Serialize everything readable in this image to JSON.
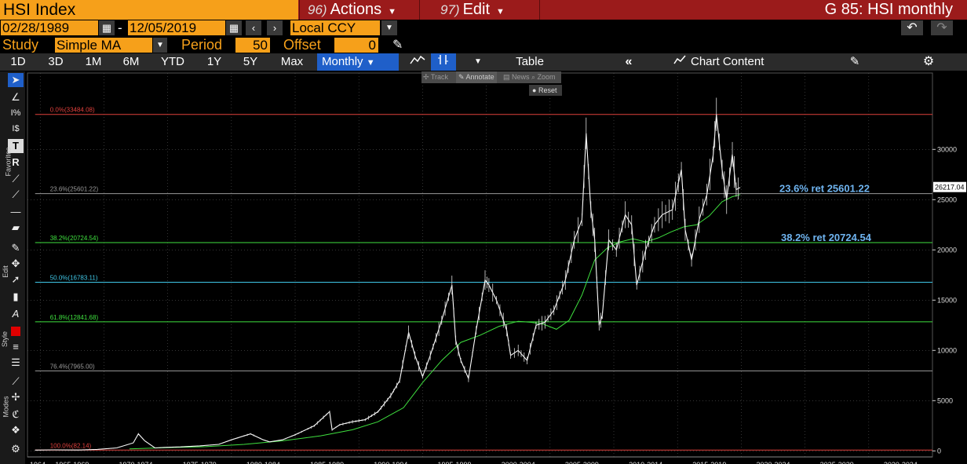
{
  "header": {
    "ticker": "HSI Index",
    "actions_num": "96)",
    "actions_label": "Actions",
    "edit_num": "97)",
    "edit_label": "Edit",
    "page_title": "G 85: HSI monthly"
  },
  "dates": {
    "start": "02/28/1989",
    "sep": "-",
    "end": "12/05/2019",
    "currency": "Local CCY"
  },
  "study": {
    "label": "Study",
    "value": "Simple MA",
    "period_label": "Period",
    "period_value": "50",
    "offset_label": "Offset",
    "offset_value": "0"
  },
  "toolbar": {
    "ranges": [
      "1D",
      "3D",
      "1M",
      "6M",
      "YTD",
      "1Y",
      "5Y",
      "Max"
    ],
    "frequency": "Monthly",
    "table": "Table",
    "chart_content": "Chart Content"
  },
  "annotate_bar": {
    "track": "Track",
    "annotate": "Annotate",
    "news": "News",
    "zoom": "Zoom",
    "reset": "Reset"
  },
  "side_labels": {
    "favorites": "Favorites",
    "edit": "Edit",
    "style": "Style",
    "modes": "Modes"
  },
  "colors": {
    "orange": "#f6a01a",
    "header_red": "#9b1b1b",
    "active_blue": "#1f5fc9",
    "fib_red": "#e0403c",
    "fib_grey": "#9a9a9a",
    "fib_green": "#3fe03f",
    "fib_cyan": "#40c8e8",
    "ma_line": "#3fe03f",
    "price_line": "#ffffff",
    "annotation_blue": "#6fb4f0"
  },
  "chart_data": {
    "type": "line",
    "title": "",
    "ylim": [
      -600,
      37600
    ],
    "y_ticks": [
      0,
      5000,
      10000,
      15000,
      20000,
      25000,
      30000
    ],
    "x_range": [
      "1964",
      "2035"
    ],
    "x_tick_labels": [
      "1964",
      "1965-1969",
      "1970-1974",
      "1975-1979",
      "1980-1984",
      "1985-1989",
      "1990-1994",
      "1995-1999",
      "2000-2004",
      "2005-2009",
      "2010-2014",
      "2015-2019",
      "2020-2024",
      "2025-2029",
      "2030-2034"
    ],
    "last_price_label": "26217.04",
    "fib_levels": [
      {
        "label": "0.0%(33484.08)",
        "value": 33484.08,
        "color": "#e0403c"
      },
      {
        "label": "23.6%(25601.22)",
        "value": 25601.22,
        "color": "#9a9a9a"
      },
      {
        "label": "38.2%(20724.54)",
        "value": 20724.54,
        "color": "#3fe03f"
      },
      {
        "label": "50.0%(16783.11)",
        "value": 16783.11,
        "color": "#40c8e8"
      },
      {
        "label": "61.8%(12841.68)",
        "value": 12841.68,
        "color": "#3fe03f"
      },
      {
        "label": "76.4%(7965.00)",
        "value": 7965.0,
        "color": "#9a9a9a"
      },
      {
        "label": "100.0%(82.14)",
        "value": 82.14,
        "color": "#e0403c"
      }
    ],
    "annotations": [
      {
        "text": "23.6% ret 25601.22",
        "value": 25601.22
      },
      {
        "text": "38.2% ret 20724.54",
        "value": 20724.54
      }
    ],
    "series": [
      {
        "name": "HSI",
        "x": [
          1964.6,
          1966,
          1968,
          1969.5,
          1971,
          1972.3,
          1972.7,
          1973.2,
          1974,
          1974.8,
          1976,
          1977.5,
          1979,
          1980,
          1981.5,
          1982.5,
          1983,
          1984,
          1985,
          1986.5,
          1987.7,
          1987.9,
          1988.5,
          1989.5,
          1990.5,
          1991.5,
          1992.5,
          1993.2,
          1993.9,
          1994.4,
          1995,
          1995.6,
          1996.5,
          1997.3,
          1997.6,
          1998,
          1998.6,
          1999.2,
          1999.9,
          2000.2,
          2000.8,
          2001.6,
          2001.9,
          2002.5,
          2003.2,
          2003.9,
          2004.6,
          2005.3,
          2006.2,
          2006.9,
          2007.5,
          2007.83,
          2008.2,
          2008.5,
          2008.85,
          2009.1,
          2009.6,
          2010.2,
          2010.9,
          2011.4,
          2011.8,
          2012.5,
          2013.2,
          2013.8,
          2014.6,
          2015.3,
          2015.6,
          2016.1,
          2016.7,
          2017.3,
          2017.8,
          2018.05,
          2018.5,
          2018.85,
          2019.3,
          2019.6,
          2019.92
        ],
        "y": [
          82,
          100,
          90,
          150,
          300,
          800,
          1700,
          1000,
          300,
          350,
          400,
          500,
          650,
          1100,
          1700,
          1100,
          900,
          1100,
          1600,
          2500,
          3900,
          2100,
          2600,
          2900,
          3100,
          3900,
          5500,
          7000,
          11800,
          9500,
          7400,
          9500,
          13000,
          16500,
          11000,
          9000,
          7200,
          12000,
          17000,
          16500,
          15000,
          12000,
          9500,
          10000,
          9000,
          12500,
          12800,
          14000,
          17000,
          21000,
          23000,
          31600,
          24000,
          21000,
          12500,
          13500,
          21000,
          20000,
          23500,
          22500,
          16500,
          20000,
          22500,
          23500,
          24000,
          28000,
          22000,
          19000,
          23000,
          25500,
          29500,
          33484,
          28000,
          25000,
          29500,
          26000,
          26217
        ]
      },
      {
        "name": "Simple MA 50",
        "x": [
          1972,
          1975,
          1978,
          1981,
          1984,
          1987,
          1989.5,
          1991.5,
          1993.5,
          1995,
          1996.5,
          1998,
          1999.5,
          2001,
          2002.5,
          2003.5,
          2004.5,
          2005.5,
          2006.5,
          2007.5,
          2008.5,
          2009.5,
          2010.5,
          2011.5,
          2012.5,
          2013.5,
          2014.5,
          2015.5,
          2016.5,
          2017.5,
          2018.5,
          2019.3,
          2019.92
        ],
        "y": [
          200,
          330,
          420,
          650,
          1000,
          1500,
          2100,
          2900,
          4300,
          6800,
          9000,
          10800,
          11500,
          12400,
          12900,
          12800,
          12600,
          12100,
          13000,
          15500,
          19000,
          20200,
          20800,
          21100,
          20800,
          21200,
          21800,
          22300,
          22500,
          23400,
          24800,
          25300,
          25500
        ]
      }
    ]
  }
}
